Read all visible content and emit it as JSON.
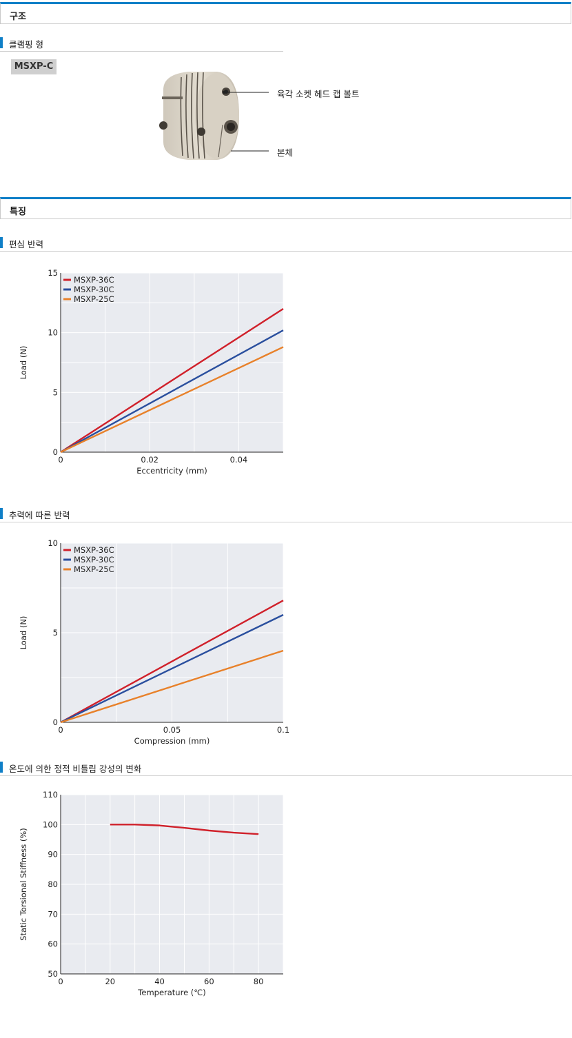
{
  "sections": {
    "structure": "구조",
    "features": "특징"
  },
  "subsections": {
    "clamping": "클램핑 형",
    "eccentric": "편심 반력",
    "thrust": "추력에 따른 반력",
    "temperature": "온도에 의한 정적 비틀림 강성의 변화"
  },
  "product": {
    "model": "MSXP-C",
    "callout_bolt": "육각 소켓 헤드 캡 볼트",
    "callout_body": "본체"
  },
  "colors": {
    "accent": "#0f7fc7",
    "series_36c": "#d0202a",
    "series_30c": "#2a4f9e",
    "series_25c": "#e8812a",
    "plot_bg": "#e9ebf0"
  },
  "chart_data": [
    {
      "type": "line",
      "xlabel": "Eccentricity (mm)",
      "ylabel": "Load (N)",
      "xlim": [
        0,
        0.05
      ],
      "ylim": [
        0,
        15
      ],
      "xticks": [
        "0",
        "0.02",
        "0.04"
      ],
      "xtick_values": [
        0,
        0.02,
        0.04
      ],
      "yticks": [
        "0",
        "5",
        "10",
        "15"
      ],
      "ytick_values": [
        0,
        5,
        10,
        15
      ],
      "grid": true,
      "legend": "top-left",
      "series": [
        {
          "name": "MSXP-36C",
          "color": "#d0202a",
          "x": [
            0,
            0.05
          ],
          "y": [
            0,
            12.0
          ]
        },
        {
          "name": "MSXP-30C",
          "color": "#2a4f9e",
          "x": [
            0,
            0.05
          ],
          "y": [
            0,
            10.2
          ]
        },
        {
          "name": "MSXP-25C",
          "color": "#e8812a",
          "x": [
            0,
            0.05
          ],
          "y": [
            0,
            8.8
          ]
        }
      ]
    },
    {
      "type": "line",
      "xlabel": "Compression (mm)",
      "ylabel": "Load (N)",
      "xlim": [
        0,
        0.1
      ],
      "ylim": [
        0,
        10
      ],
      "xticks": [
        "0",
        "0.05",
        "0.1"
      ],
      "xtick_values": [
        0,
        0.05,
        0.1
      ],
      "yticks": [
        "0",
        "5",
        "10"
      ],
      "ytick_values": [
        0,
        5,
        10
      ],
      "grid": true,
      "legend": "top-left",
      "series": [
        {
          "name": "MSXP-36C",
          "color": "#d0202a",
          "x": [
            0,
            0.1
          ],
          "y": [
            0,
            6.8
          ]
        },
        {
          "name": "MSXP-30C",
          "color": "#2a4f9e",
          "x": [
            0,
            0.1
          ],
          "y": [
            0,
            6.0
          ]
        },
        {
          "name": "MSXP-25C",
          "color": "#e8812a",
          "x": [
            0,
            0.1
          ],
          "y": [
            0,
            4.0
          ]
        }
      ]
    },
    {
      "type": "line",
      "xlabel": "Temperature (℃)",
      "ylabel": "Static Torsional Stiffness (%)",
      "xlim": [
        0,
        90
      ],
      "ylim": [
        50,
        110
      ],
      "xticks": [
        "0",
        "20",
        "40",
        "60",
        "80"
      ],
      "xtick_values": [
        0,
        20,
        40,
        60,
        80
      ],
      "yticks": [
        "50",
        "60",
        "70",
        "80",
        "90",
        "100",
        "110"
      ],
      "ytick_values": [
        50,
        60,
        70,
        80,
        90,
        100,
        110
      ],
      "grid": true,
      "legend": "none",
      "series": [
        {
          "color": "#d0202a",
          "x": [
            20,
            30,
            40,
            50,
            60,
            70,
            80
          ],
          "y": [
            100,
            100,
            99.7,
            98.9,
            98.0,
            97.3,
            96.8
          ]
        }
      ]
    }
  ]
}
